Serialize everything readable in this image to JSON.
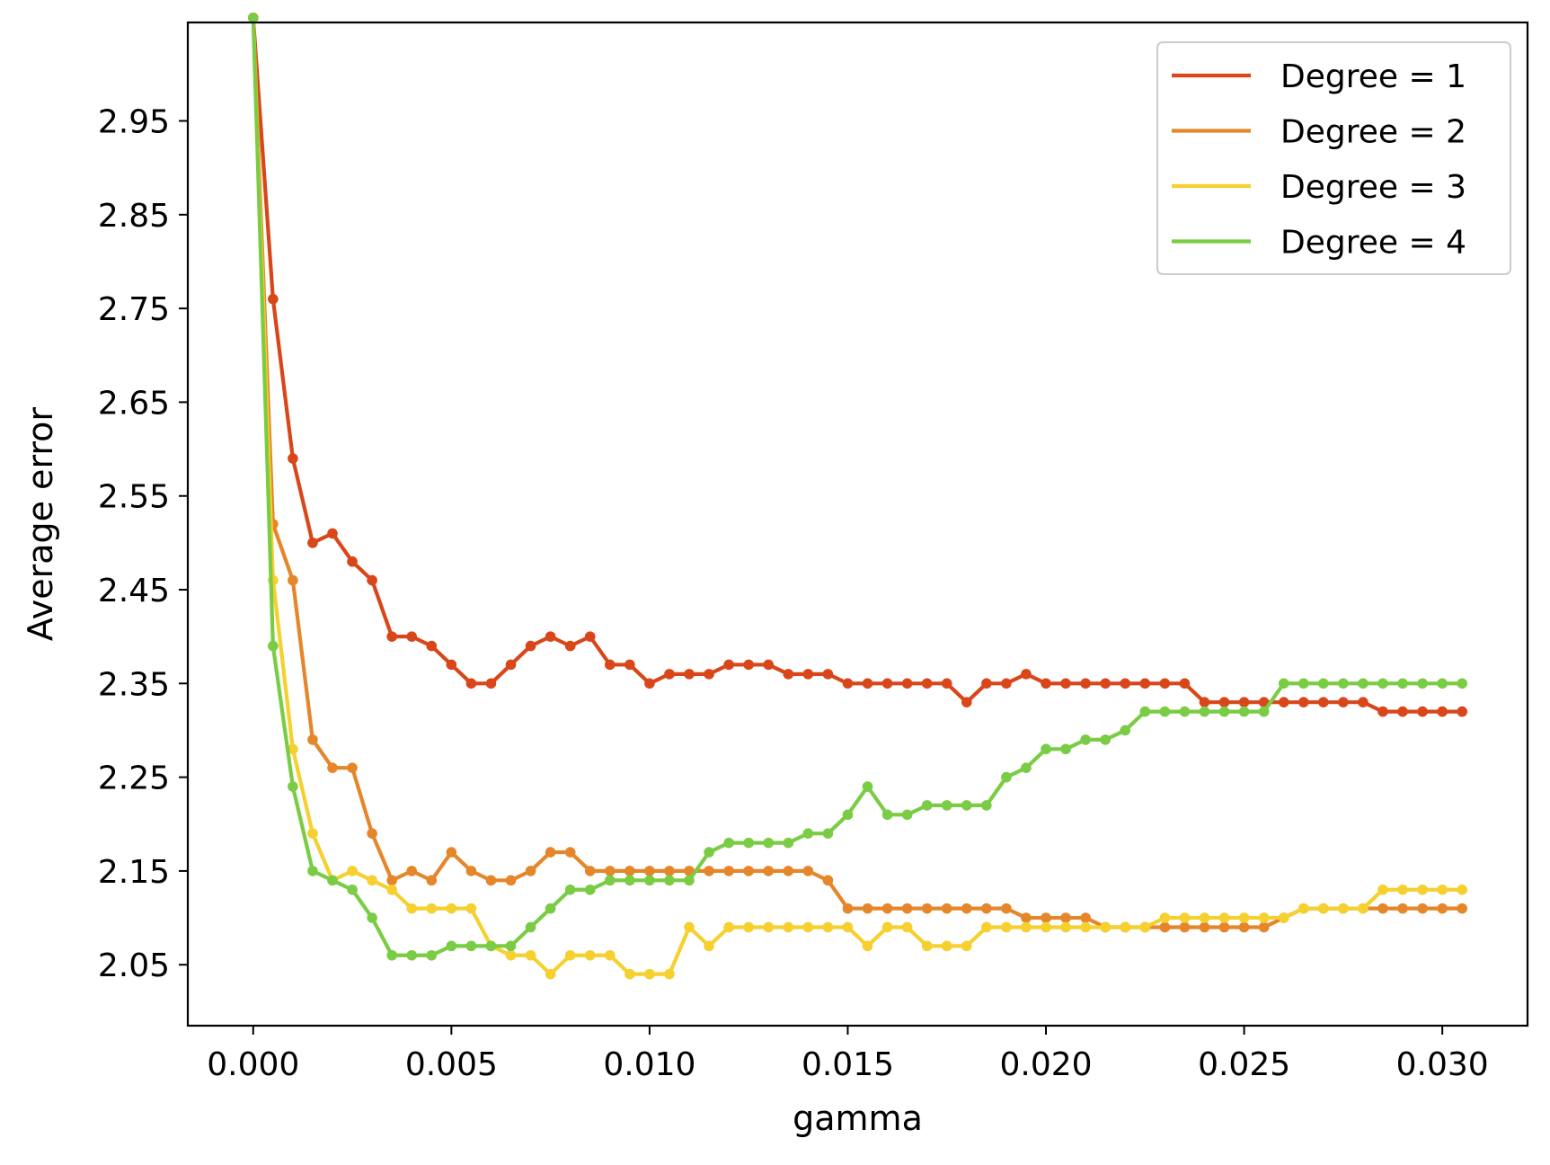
{
  "chart_data": {
    "type": "line",
    "title": "",
    "xlabel": "gamma",
    "ylabel": "Average error",
    "xlim": [
      -0.00165,
      0.03215
    ],
    "ylim": [
      1.985,
      3.055
    ],
    "xticks": [
      0.0,
      0.005,
      0.01,
      0.015,
      0.02,
      0.025,
      0.03
    ],
    "xtick_labels": [
      "0.000",
      "0.005",
      "0.010",
      "0.015",
      "0.020",
      "0.025",
      "0.030"
    ],
    "yticks": [
      2.05,
      2.15,
      2.25,
      2.35,
      2.45,
      2.55,
      2.65,
      2.75,
      2.85,
      2.95
    ],
    "ytick_labels": [
      "2.05",
      "2.15",
      "2.25",
      "2.35",
      "2.45",
      "2.55",
      "2.65",
      "2.75",
      "2.85",
      "2.95"
    ],
    "grid": false,
    "legend_position": "top-right",
    "x": [
      0.0,
      0.0005,
      0.001,
      0.0015,
      0.002,
      0.0025,
      0.003,
      0.0035,
      0.004,
      0.0045,
      0.005,
      0.0055,
      0.006,
      0.0065,
      0.007,
      0.0075,
      0.008,
      0.0085,
      0.009,
      0.0095,
      0.01,
      0.0105,
      0.011,
      0.0115,
      0.012,
      0.0125,
      0.013,
      0.0135,
      0.014,
      0.0145,
      0.015,
      0.0155,
      0.016,
      0.0165,
      0.017,
      0.0175,
      0.018,
      0.0185,
      0.019,
      0.0195,
      0.02,
      0.0205,
      0.021,
      0.0215,
      0.022,
      0.0225,
      0.023,
      0.0235,
      0.024,
      0.0245,
      0.025,
      0.0255,
      0.026,
      0.0265,
      0.027,
      0.0275,
      0.028,
      0.0285,
      0.029,
      0.0295,
      0.03,
      0.0305
    ],
    "series": [
      {
        "name": "Degree = 1",
        "color": "#d9461a",
        "values": [
          3.06,
          2.76,
          2.59,
          2.5,
          2.51,
          2.48,
          2.46,
          2.4,
          2.4,
          2.39,
          2.37,
          2.35,
          2.35,
          2.37,
          2.39,
          2.4,
          2.39,
          2.4,
          2.37,
          2.37,
          2.35,
          2.36,
          2.36,
          2.36,
          2.37,
          2.37,
          2.37,
          2.36,
          2.36,
          2.36,
          2.35,
          2.35,
          2.35,
          2.35,
          2.35,
          2.35,
          2.33,
          2.35,
          2.35,
          2.36,
          2.35,
          2.35,
          2.35,
          2.35,
          2.35,
          2.35,
          2.35,
          2.35,
          2.33,
          2.33,
          2.33,
          2.33,
          2.33,
          2.33,
          2.33,
          2.33,
          2.33,
          2.32,
          2.32,
          2.32,
          2.32,
          2.32
        ]
      },
      {
        "name": "Degree = 2",
        "color": "#e5862a",
        "values": [
          3.06,
          2.52,
          2.46,
          2.29,
          2.26,
          2.26,
          2.19,
          2.14,
          2.15,
          2.14,
          2.17,
          2.15,
          2.14,
          2.14,
          2.15,
          2.17,
          2.17,
          2.15,
          2.15,
          2.15,
          2.15,
          2.15,
          2.15,
          2.15,
          2.15,
          2.15,
          2.15,
          2.15,
          2.15,
          2.14,
          2.11,
          2.11,
          2.11,
          2.11,
          2.11,
          2.11,
          2.11,
          2.11,
          2.11,
          2.1,
          2.1,
          2.1,
          2.1,
          2.09,
          2.09,
          2.09,
          2.09,
          2.09,
          2.09,
          2.09,
          2.09,
          2.09,
          2.1,
          2.11,
          2.11,
          2.11,
          2.11,
          2.11,
          2.11,
          2.11,
          2.11,
          2.11
        ]
      },
      {
        "name": "Degree = 3",
        "color": "#f5d02f",
        "values": [
          3.06,
          2.46,
          2.28,
          2.19,
          2.14,
          2.15,
          2.14,
          2.13,
          2.11,
          2.11,
          2.11,
          2.11,
          2.07,
          2.06,
          2.06,
          2.04,
          2.06,
          2.06,
          2.06,
          2.04,
          2.04,
          2.04,
          2.09,
          2.07,
          2.09,
          2.09,
          2.09,
          2.09,
          2.09,
          2.09,
          2.09,
          2.07,
          2.09,
          2.09,
          2.07,
          2.07,
          2.07,
          2.09,
          2.09,
          2.09,
          2.09,
          2.09,
          2.09,
          2.09,
          2.09,
          2.09,
          2.1,
          2.1,
          2.1,
          2.1,
          2.1,
          2.1,
          2.1,
          2.11,
          2.11,
          2.11,
          2.11,
          2.13,
          2.13,
          2.13,
          2.13,
          2.13
        ]
      },
      {
        "name": "Degree = 4",
        "color": "#7acc44",
        "values": [
          3.06,
          2.39,
          2.24,
          2.15,
          2.14,
          2.13,
          2.1,
          2.06,
          2.06,
          2.06,
          2.07,
          2.07,
          2.07,
          2.07,
          2.09,
          2.11,
          2.13,
          2.13,
          2.14,
          2.14,
          2.14,
          2.14,
          2.14,
          2.17,
          2.18,
          2.18,
          2.18,
          2.18,
          2.19,
          2.19,
          2.21,
          2.24,
          2.21,
          2.21,
          2.22,
          2.22,
          2.22,
          2.22,
          2.25,
          2.26,
          2.28,
          2.28,
          2.29,
          2.29,
          2.3,
          2.32,
          2.32,
          2.32,
          2.32,
          2.32,
          2.32,
          2.32,
          2.35,
          2.35,
          2.35,
          2.35,
          2.35,
          2.35,
          2.35,
          2.35,
          2.35,
          2.35
        ]
      }
    ]
  }
}
